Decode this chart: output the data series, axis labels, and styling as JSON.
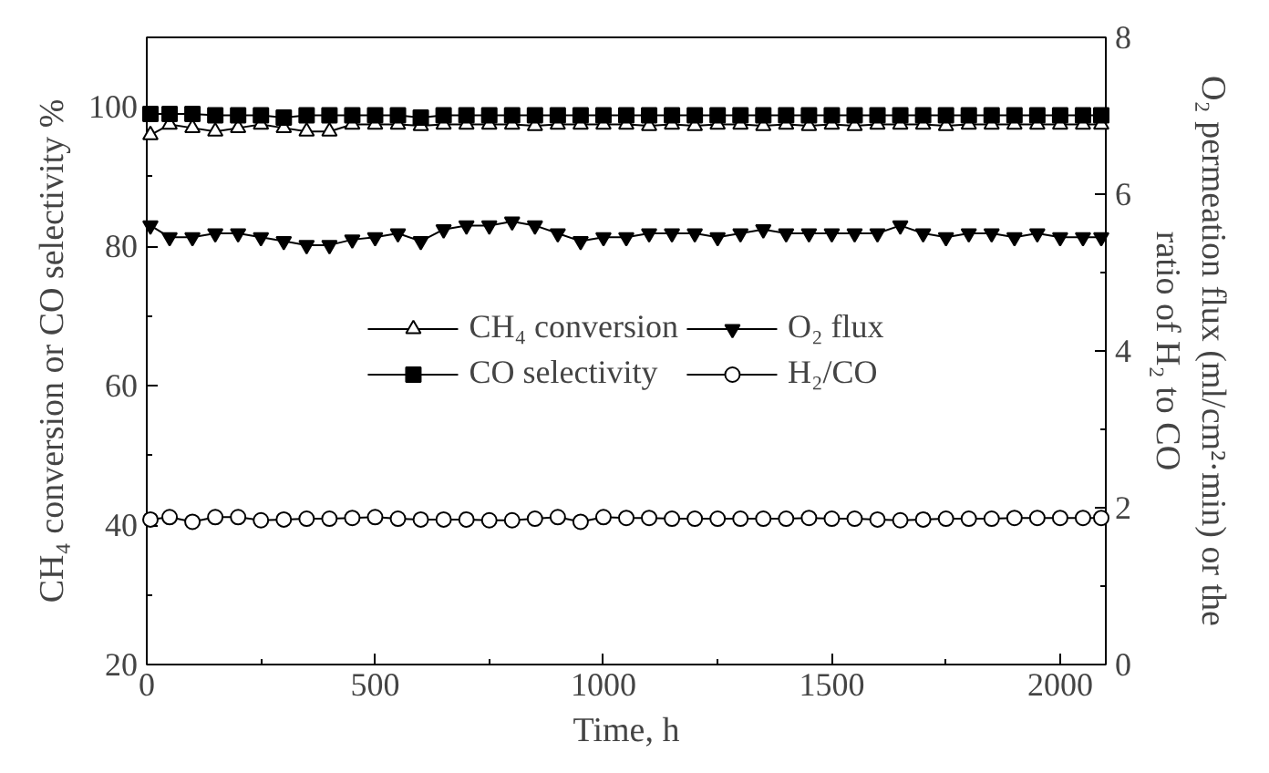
{
  "chart_data": {
    "type": "line",
    "xlabel": "Time, h",
    "ylabel": "CH₄ conversion or CO selectivity %",
    "y2label": "O₂ permeation flux (ml/cm²·min) or the ratio of H₂ to CO",
    "x": [
      8,
      50,
      100,
      150,
      200,
      250,
      300,
      350,
      400,
      450,
      500,
      550,
      600,
      650,
      700,
      750,
      800,
      850,
      900,
      950,
      1000,
      1050,
      1100,
      1150,
      1200,
      1250,
      1300,
      1350,
      1400,
      1450,
      1500,
      1550,
      1600,
      1650,
      1700,
      1750,
      1800,
      1850,
      1900,
      1950,
      2000,
      2050,
      2090
    ],
    "xlim": [
      0,
      2100
    ],
    "xticks": [
      0,
      500,
      1000,
      1500,
      2000
    ],
    "ylim": [
      20,
      110
    ],
    "yticks": [
      20,
      40,
      60,
      80,
      100
    ],
    "y2lim": [
      0,
      8
    ],
    "y2ticks": [
      0,
      2,
      4,
      6,
      8
    ],
    "grid": false,
    "legend": "center",
    "line_style": "solid",
    "series": [
      {
        "name": "CH₄ conversion",
        "color": "#000000",
        "marker": "triangle",
        "values": [
          96,
          97.5,
          97,
          96.5,
          97,
          97.5,
          97,
          96.5,
          96.5,
          97.5,
          97.5,
          97.5,
          97.3,
          97.5,
          97.5,
          97.5,
          97.5,
          97.3,
          97.5,
          97.5,
          97.5,
          97.5,
          97.3,
          97.5,
          97.3,
          97.5,
          97.5,
          97.3,
          97.5,
          97.3,
          97.5,
          97.3,
          97.5,
          97.5,
          97.5,
          97.3,
          97.5,
          97.5,
          97.5,
          97.5,
          97.5,
          97.5,
          97.5
        ]
      },
      {
        "name": "CO selectivity",
        "color": "#000000",
        "marker": "square",
        "values": [
          99,
          99,
          99,
          98.8,
          98.8,
          98.8,
          98.5,
          98.8,
          98.8,
          98.8,
          98.8,
          98.8,
          98.5,
          98.8,
          98.8,
          98.8,
          98.8,
          98.8,
          98.8,
          98.8,
          98.8,
          98.8,
          98.8,
          98.8,
          98.8,
          98.8,
          98.8,
          98.8,
          98.8,
          98.8,
          98.8,
          98.8,
          98.8,
          98.8,
          98.8,
          98.8,
          98.8,
          98.8,
          98.8,
          98.8,
          98.8,
          98.8,
          98.8
        ]
      },
      {
        "name": "O₂ flux",
        "color": "#000000",
        "marker": "triangle_down",
        "axis": "y2",
        "values": [
          5.6,
          5.45,
          5.45,
          5.5,
          5.5,
          5.45,
          5.4,
          5.35,
          5.35,
          5.42,
          5.45,
          5.5,
          5.4,
          5.55,
          5.6,
          5.6,
          5.65,
          5.6,
          5.5,
          5.4,
          5.45,
          5.45,
          5.5,
          5.5,
          5.5,
          5.45,
          5.5,
          5.55,
          5.5,
          5.5,
          5.5,
          5.5,
          5.5,
          5.6,
          5.5,
          5.45,
          5.5,
          5.5,
          5.45,
          5.5,
          5.45,
          5.45,
          5.45
        ]
      },
      {
        "name": "H₂/CO",
        "color": "#000000",
        "marker": "circle",
        "axis": "y2",
        "values": [
          1.85,
          1.88,
          1.82,
          1.88,
          1.88,
          1.84,
          1.85,
          1.86,
          1.86,
          1.87,
          1.88,
          1.86,
          1.85,
          1.85,
          1.85,
          1.84,
          1.84,
          1.86,
          1.88,
          1.82,
          1.88,
          1.87,
          1.87,
          1.86,
          1.86,
          1.86,
          1.86,
          1.86,
          1.86,
          1.87,
          1.86,
          1.86,
          1.85,
          1.84,
          1.85,
          1.86,
          1.86,
          1.86,
          1.87,
          1.87,
          1.87,
          1.87,
          1.87
        ]
      }
    ]
  }
}
